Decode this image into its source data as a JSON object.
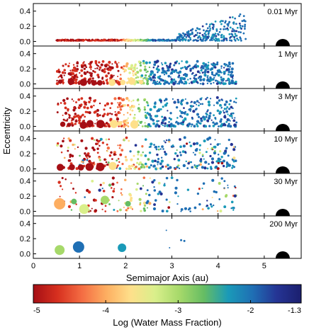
{
  "chart_data": {
    "type": "scatter",
    "xlabel": "Semimajor Axis (au)",
    "ylabel": "Eccentricity",
    "xlim": [
      0,
      5.8
    ],
    "ylim": [
      0,
      0.5
    ],
    "x_ticks": [
      0,
      1,
      2,
      3,
      4,
      5
    ],
    "y_ticks": [
      0.0,
      0.2,
      0.4
    ],
    "panels": [
      {
        "label": "0.01 Myr",
        "jupiter": {
          "a": 5.4,
          "e": 0.0
        }
      },
      {
        "label": "1 Myr",
        "jupiter": {
          "a": 5.4,
          "e": 0.0
        }
      },
      {
        "label": "3 Myr",
        "jupiter": {
          "a": 5.4,
          "e": 0.0
        }
      },
      {
        "label": "10 Myr",
        "jupiter": {
          "a": 5.4,
          "e": 0.0
        }
      },
      {
        "label": "30 Myr",
        "jupiter": {
          "a": 5.4,
          "e": 0.0
        },
        "large_bodies": [
          {
            "a": 0.57,
            "e": 0.1,
            "logw": -3.9,
            "size": 8
          },
          {
            "a": 0.88,
            "e": 0.13,
            "logw": -2.5,
            "size": 4
          },
          {
            "a": 1.1,
            "e": 0.03,
            "logw": -3.2,
            "size": 7
          },
          {
            "a": 1.55,
            "e": 0.15,
            "logw": -3.0,
            "size": 6
          },
          {
            "a": 2.05,
            "e": 0.1,
            "logw": -2.6,
            "size": 4
          }
        ]
      },
      {
        "label": "200 Myr",
        "jupiter": {
          "a": 5.4,
          "e": 0.0
        },
        "large_bodies": [
          {
            "a": 0.57,
            "e": 0.05,
            "logw": -3.0,
            "size": 7
          },
          {
            "a": 0.98,
            "e": 0.09,
            "logw": -2.1,
            "size": 8
          },
          {
            "a": 1.92,
            "e": 0.08,
            "logw": -2.3,
            "size": 6
          },
          {
            "a": 3.2,
            "e": 0.18,
            "logw": -2.0,
            "size": 1.5
          },
          {
            "a": 3.27,
            "e": 0.17,
            "logw": -2.0,
            "size": 1.5
          },
          {
            "a": 2.88,
            "e": 0.31,
            "logw": -2.0,
            "size": 1
          },
          {
            "a": 2.95,
            "e": 0.08,
            "logw": -2.0,
            "size": 1
          }
        ]
      }
    ],
    "colorbar": {
      "label": "Log (Water Mass Fraction)",
      "range": [
        -5,
        -1.3
      ],
      "ticks": [
        "-5",
        "-4",
        "-3",
        "-2",
        "-1.3"
      ],
      "colors": [
        "#a50f15",
        "#d7301f",
        "#f46d43",
        "#fdae61",
        "#fee08b",
        "#d9ef8b",
        "#a6d96a",
        "#66bd63",
        "#1a9ab8",
        "#1f6fb4",
        "#253494",
        "#1b1f6e"
      ]
    }
  }
}
